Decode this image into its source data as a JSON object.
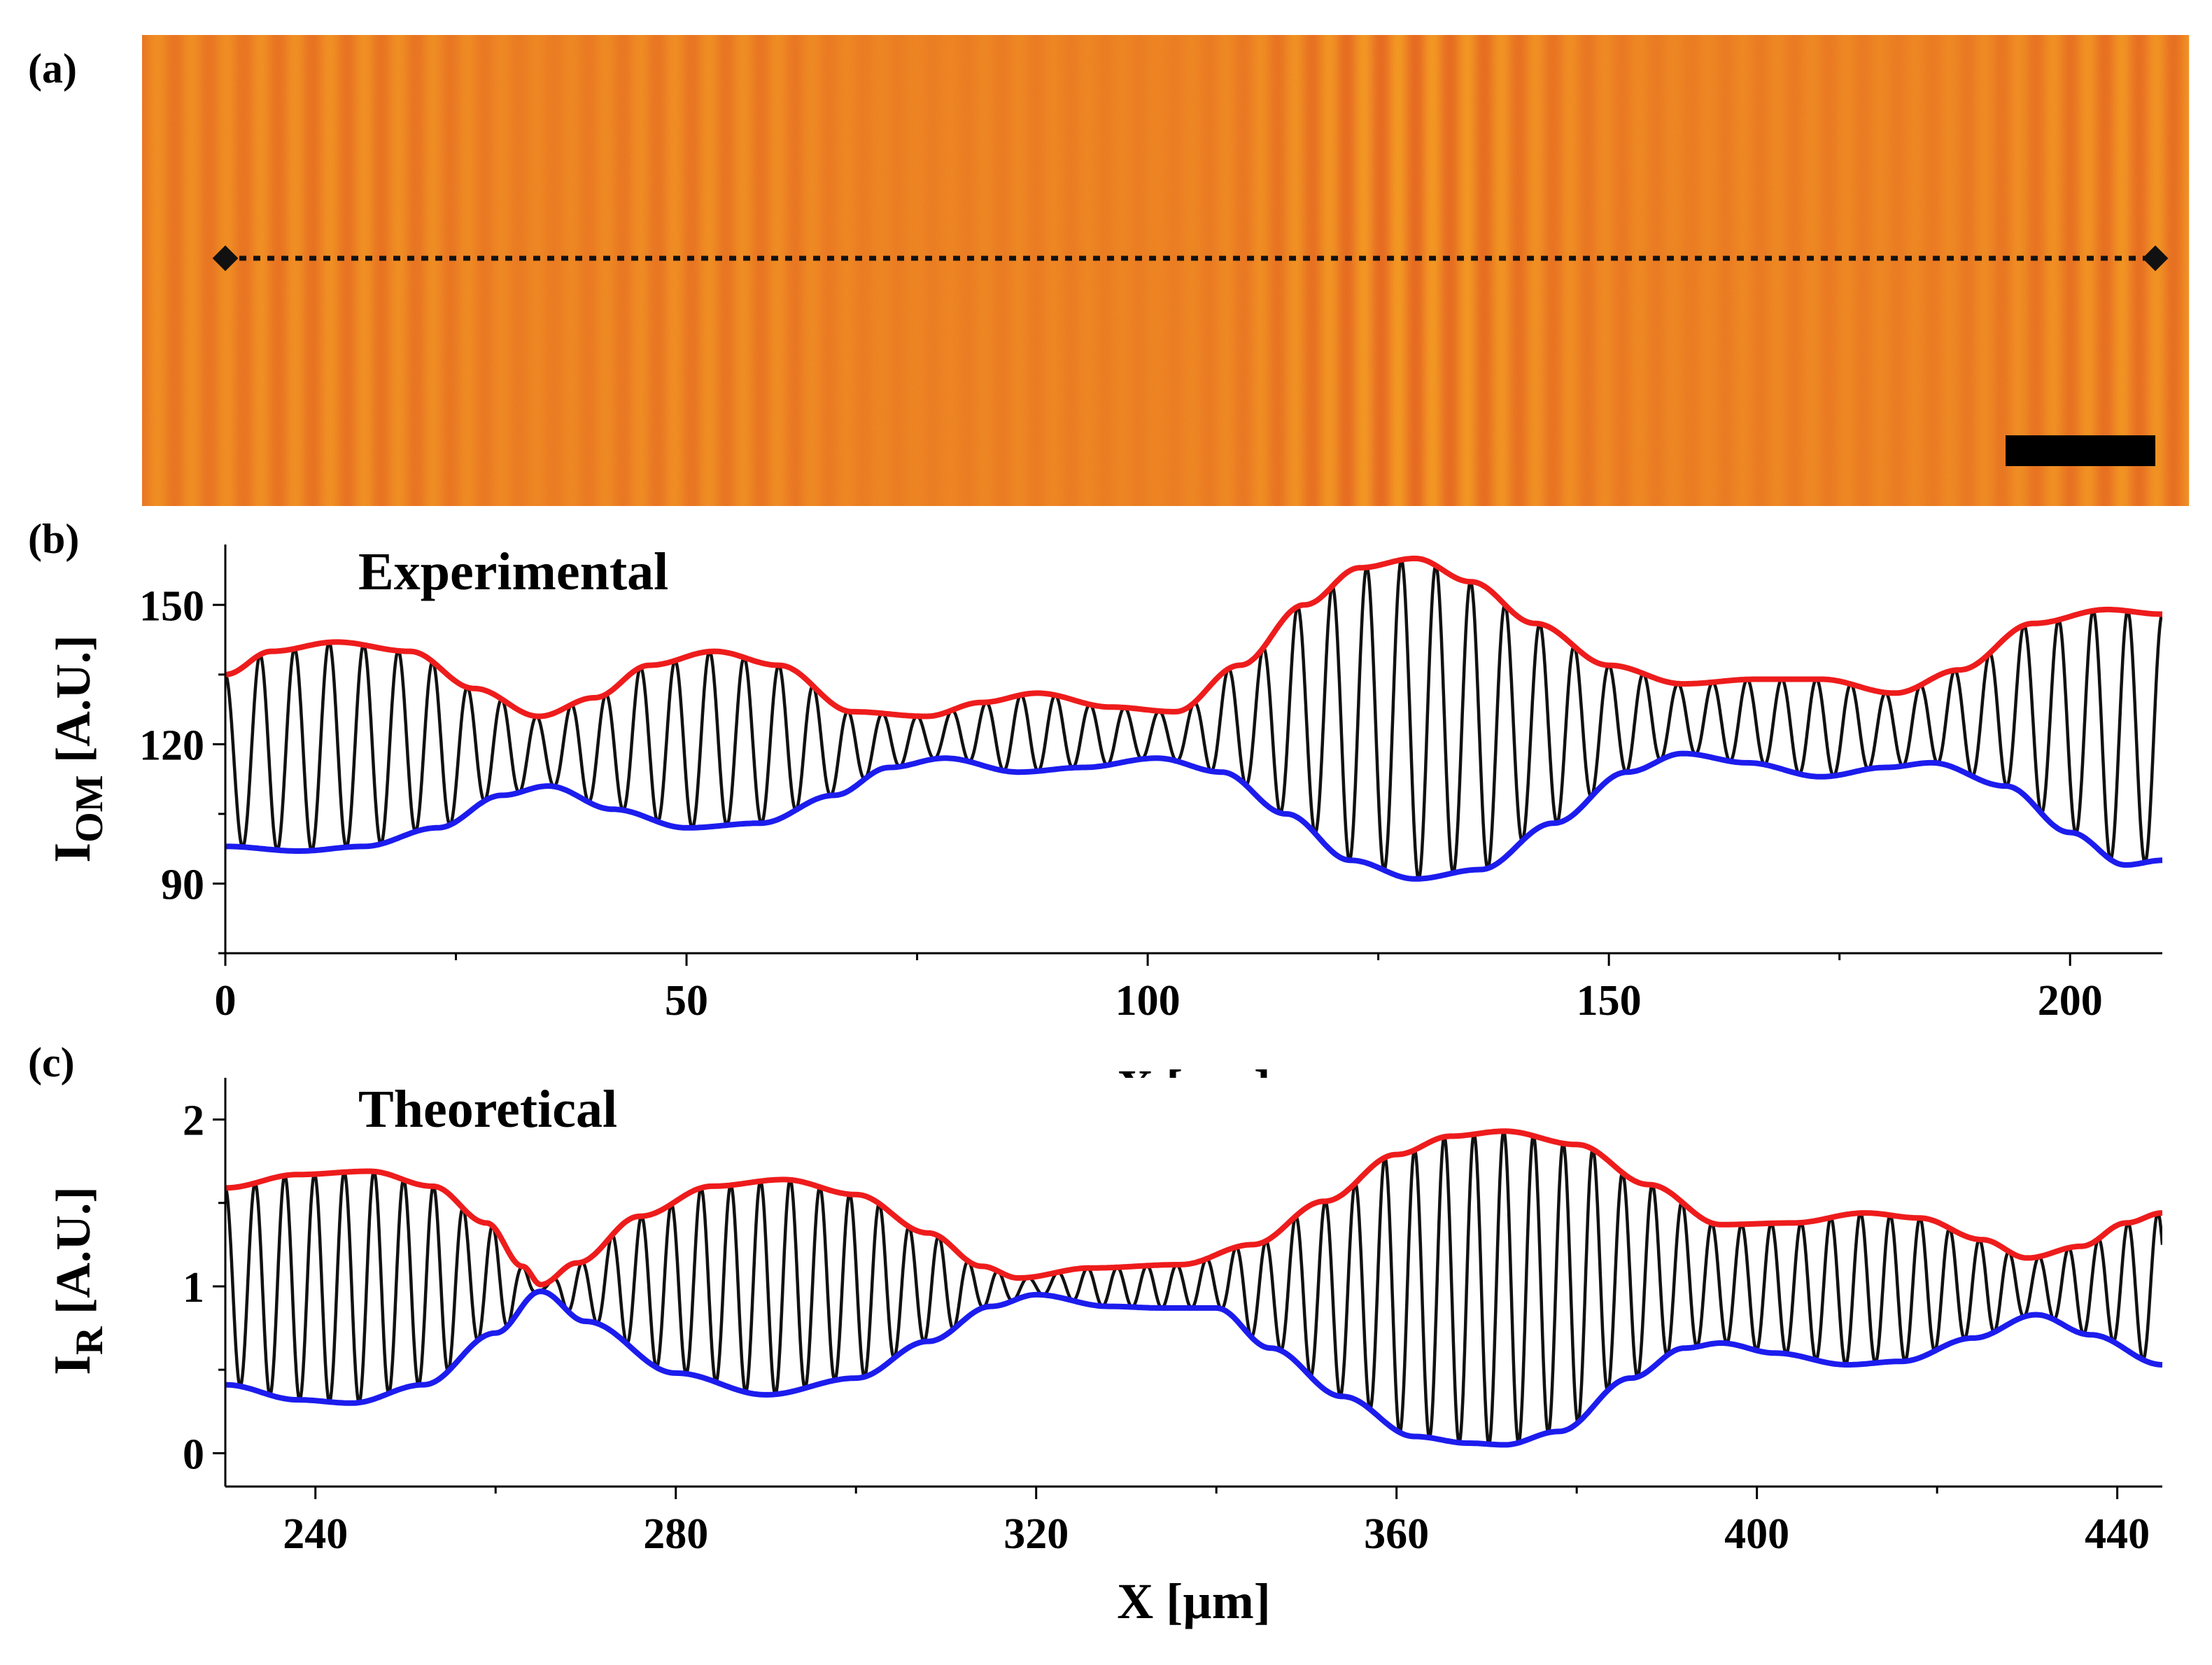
{
  "figure": {
    "panels": [
      "(a)",
      "(b)",
      "(c)"
    ]
  },
  "colors": {
    "upper_envelope": "#ee1c1c",
    "lower_envelope": "#1c1cee",
    "signal": "#111111",
    "fringe_bright": "#ffc020",
    "fringe_dark": "#d83a1c",
    "fringe_mid": "#f28a2a",
    "scale_bar": "#000000"
  },
  "image_panel": {
    "label": "(a)",
    "description_line": "dotted profile line with diamond end markers",
    "scale_bar": true
  },
  "chart_data": [
    {
      "panel": "(b)",
      "type": "line",
      "annotation": "Experimental",
      "xlabel": "X [µm]",
      "ylabel_main": "I",
      "ylabel_sub": "OM",
      "ylabel_units": " [A.U.]",
      "xlim": [
        0,
        210
      ],
      "ylim": [
        75,
        163
      ],
      "xticks": [
        0,
        50,
        100,
        150,
        200
      ],
      "yticks": [
        90,
        120,
        150
      ],
      "oscillation_period": 3.75,
      "series": [
        {
          "name": "upper envelope",
          "color": "red",
          "x": [
            0,
            5,
            12,
            20,
            27,
            34,
            40,
            46,
            53,
            60,
            68,
            76,
            82,
            88,
            96,
            103,
            110,
            117,
            123,
            129,
            135,
            142,
            150,
            158,
            166,
            173,
            181,
            188,
            196,
            204,
            210
          ],
          "y": [
            135,
            140,
            142,
            140,
            132,
            126,
            130,
            137,
            140,
            137,
            127,
            126,
            129,
            131,
            128,
            127,
            137,
            150,
            158,
            160,
            155,
            146,
            137,
            133,
            134,
            134,
            131,
            136,
            146,
            149,
            148
          ]
        },
        {
          "name": "lower envelope",
          "color": "blue",
          "x": [
            0,
            8,
            15,
            23,
            30,
            35,
            42,
            50,
            58,
            66,
            72,
            78,
            86,
            93,
            101,
            108,
            115,
            122,
            129,
            136,
            144,
            152,
            158,
            165,
            173,
            180,
            185,
            193,
            200,
            206,
            210
          ],
          "y": [
            98,
            97,
            98,
            102,
            109,
            111,
            106,
            102,
            103,
            109,
            115,
            117,
            114,
            115,
            117,
            114,
            105,
            95,
            91,
            93,
            103,
            114,
            118,
            116,
            113,
            115,
            116,
            111,
            101,
            94,
            95
          ]
        }
      ]
    },
    {
      "panel": "(c)",
      "type": "line",
      "annotation": "Theoretical",
      "xlabel": "X [µm]",
      "ylabel_main": "I",
      "ylabel_sub": "R",
      "ylabel_units": " [A.U.]",
      "xlim": [
        230,
        445
      ],
      "ylim": [
        -0.2,
        2.25
      ],
      "xticks": [
        240,
        280,
        320,
        360,
        400,
        440
      ],
      "yticks": [
        0,
        1,
        2
      ],
      "oscillation_period": 3.3,
      "series": [
        {
          "name": "upper envelope",
          "color": "red",
          "x": [
            230,
            238,
            246,
            253,
            259,
            263,
            265,
            269,
            276,
            284,
            292,
            300,
            308,
            314,
            318,
            326,
            336,
            344,
            352,
            360,
            366,
            372,
            380,
            388,
            396,
            404,
            412,
            418,
            425,
            430,
            436,
            441,
            445
          ],
          "y": [
            1.59,
            1.67,
            1.69,
            1.6,
            1.38,
            1.12,
            1.01,
            1.14,
            1.42,
            1.6,
            1.64,
            1.55,
            1.32,
            1.12,
            1.05,
            1.11,
            1.13,
            1.25,
            1.51,
            1.79,
            1.9,
            1.93,
            1.85,
            1.61,
            1.37,
            1.38,
            1.44,
            1.41,
            1.28,
            1.17,
            1.24,
            1.38,
            1.44
          ]
        },
        {
          "name": "lower envelope",
          "color": "blue",
          "x": [
            230,
            238,
            244,
            252,
            260,
            265,
            270,
            280,
            290,
            300,
            308,
            315,
            320,
            328,
            334,
            340,
            346,
            354,
            362,
            368,
            372,
            378,
            386,
            392,
            396,
            402,
            410,
            416,
            424,
            431,
            437,
            445
          ],
          "y": [
            0.41,
            0.32,
            0.3,
            0.41,
            0.72,
            0.97,
            0.79,
            0.48,
            0.35,
            0.45,
            0.67,
            0.88,
            0.95,
            0.88,
            0.87,
            0.87,
            0.63,
            0.34,
            0.1,
            0.06,
            0.05,
            0.13,
            0.45,
            0.63,
            0.66,
            0.6,
            0.53,
            0.55,
            0.69,
            0.83,
            0.71,
            0.53
          ]
        }
      ]
    }
  ]
}
